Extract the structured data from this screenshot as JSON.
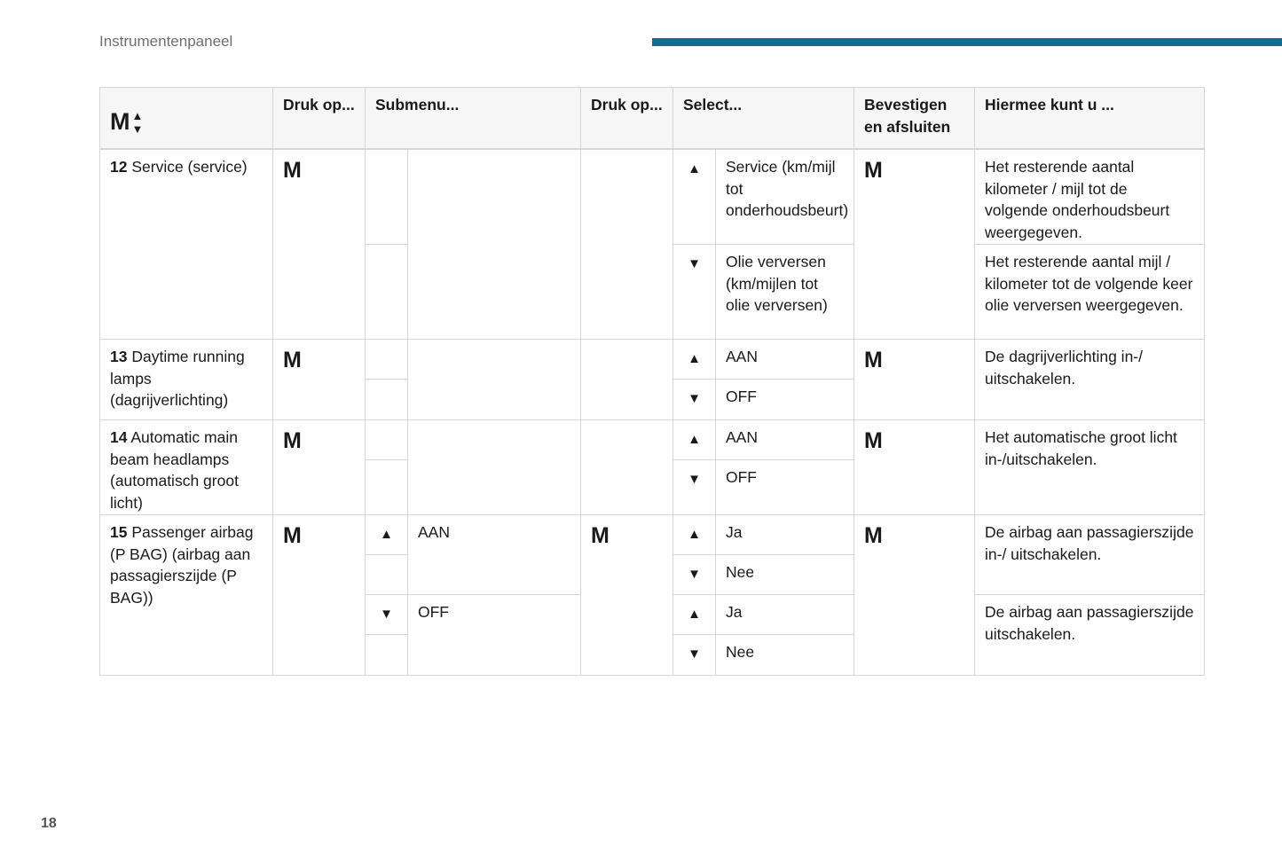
{
  "page": {
    "section_title": "Instrumentenpaneel",
    "page_number": "18",
    "accent_color": "#0f6e8c"
  },
  "table": {
    "header": {
      "menu_key": "M",
      "menu_arrows": [
        "▲",
        "▼"
      ],
      "press1": "Druk op...",
      "submenu": "Submenu...",
      "press2": "Druk op...",
      "select": "Select...",
      "confirm": "Bevestigen en afsluiten",
      "purpose": "Hiermee kunt u ..."
    },
    "button_m": "M",
    "up": "▲",
    "down": "▼",
    "rows": [
      {
        "num": "12",
        "label": " Service (service)",
        "select": [
          "Service (km/mijl tot onderhoudsbeurt)",
          "Olie verversen (km/mijlen tot olie verversen)"
        ],
        "purpose": [
          "Het resterende aantal kilometer / mijl tot de volgende onderhoudsbeurt weergegeven.",
          "Het resterende aantal mijl / kilometer tot de volgende keer olie verversen weergegeven."
        ]
      },
      {
        "num": "13",
        "label": " Daytime running lamps (dagrijverlichting)",
        "select": [
          "AAN",
          "OFF"
        ],
        "purpose": [
          "De dagrijverlichting in-/ uitschakelen."
        ]
      },
      {
        "num": "14",
        "label": " Automatic main beam headlamps (automatisch groot licht)",
        "select": [
          "AAN",
          "OFF"
        ],
        "purpose": [
          "Het automatische groot licht in-/uitschakelen."
        ]
      },
      {
        "num": "15",
        "label": " Passenger airbag (P BAG) (airbag aan passagierszijde (P BAG))",
        "submenu": [
          "AAN",
          "OFF"
        ],
        "select": [
          "Ja",
          "Nee",
          "Ja",
          "Nee"
        ],
        "purpose": [
          "De airbag aan passagierszijde in-/ uitschakelen.",
          "De airbag aan passagierszijde uitschakelen."
        ]
      }
    ]
  }
}
